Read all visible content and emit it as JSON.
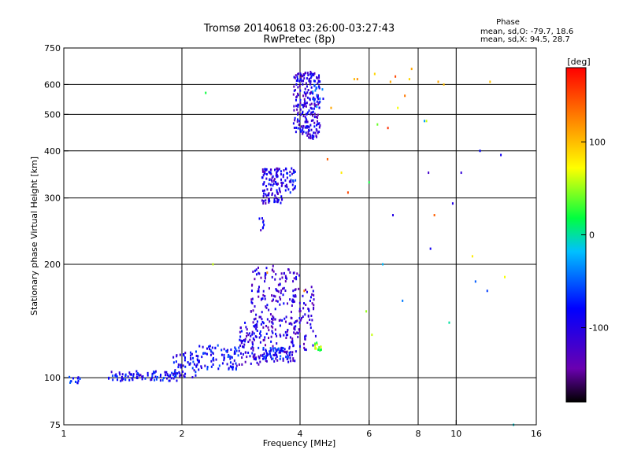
{
  "chart_data": {
    "type": "scatter",
    "title": "Tromsø 20140618 03:26:00-03:27:43",
    "subtitle": "RwPretec (8p)",
    "xlabel": "Frequency [MHz]",
    "ylabel": "Stationary phase Virtual Height [km]",
    "x_scale": "log",
    "y_scale": "log",
    "xlim": [
      1,
      16
    ],
    "ylim": [
      75,
      750
    ],
    "x_ticks": [
      1,
      2,
      4,
      6,
      8,
      10,
      16
    ],
    "x_tick_labels": [
      "1",
      "2",
      "4",
      "6",
      "8",
      "10",
      "16"
    ],
    "y_ticks": [
      75,
      100,
      200,
      300,
      400,
      500,
      600,
      750
    ],
    "y_tick_labels": [
      "75",
      "100",
      "200",
      "300",
      "400",
      "500",
      "600",
      "750"
    ],
    "grid": true,
    "stats": {
      "heading": "Phase",
      "line1": "mean, sd,O: -79.7, 18.6",
      "line2": "mean, sd,X:  94.5, 28.7"
    },
    "colorbar": {
      "label": "[deg]",
      "range": [
        -180,
        180
      ],
      "ticks": [
        100,
        0,
        -100
      ],
      "tick_labels": [
        "100",
        "0",
        "-100"
      ],
      "colormap": "rainbow"
    },
    "series": [
      {
        "type": "scatter_clusters",
        "clusters": [
          {
            "fmin": 1.02,
            "fmax": 1.1,
            "hmin": 96,
            "hmax": 101,
            "n": 12,
            "phase": -70
          },
          {
            "fmin": 1.3,
            "fmax": 1.6,
            "hmin": 98,
            "hmax": 104,
            "n": 45,
            "phase": -90
          },
          {
            "fmin": 1.6,
            "fmax": 1.95,
            "hmin": 98,
            "hmax": 104,
            "n": 40,
            "phase": -85
          },
          {
            "fmin": 1.9,
            "fmax": 2.2,
            "hmin": 100,
            "hmax": 118,
            "n": 60,
            "phase": -90
          },
          {
            "fmin": 2.2,
            "fmax": 2.8,
            "hmin": 105,
            "hmax": 122,
            "n": 80,
            "phase": -85
          },
          {
            "fmin": 2.8,
            "fmax": 3.2,
            "hmin": 108,
            "hmax": 140,
            "n": 70,
            "phase": -100
          },
          {
            "fmin": 3.0,
            "fmax": 3.5,
            "hmin": 110,
            "hmax": 200,
            "n": 130,
            "phase": -110
          },
          {
            "fmin": 3.5,
            "fmax": 4.0,
            "hmin": 110,
            "hmax": 195,
            "n": 110,
            "phase": -110
          },
          {
            "fmin": 3.2,
            "fmax": 3.8,
            "hmin": 112,
            "hmax": 120,
            "n": 60,
            "phase": -75
          },
          {
            "fmin": 3.8,
            "fmax": 4.4,
            "hmin": 118,
            "hmax": 175,
            "n": 60,
            "phase": -110
          },
          {
            "fmin": 4.35,
            "fmax": 4.55,
            "hmin": 118,
            "hmax": 124,
            "n": 15,
            "phase": 45
          },
          {
            "fmin": 3.15,
            "fmax": 3.25,
            "hmin": 240,
            "hmax": 265,
            "n": 8,
            "phase": -100
          },
          {
            "fmin": 3.2,
            "fmax": 3.6,
            "hmin": 290,
            "hmax": 360,
            "n": 110,
            "phase": -105
          },
          {
            "fmin": 3.6,
            "fmax": 3.9,
            "hmin": 310,
            "hmax": 360,
            "n": 40,
            "phase": -90
          },
          {
            "fmin": 3.85,
            "fmax": 4.5,
            "hmin": 430,
            "hmax": 650,
            "n": 220,
            "phase": -105
          },
          {
            "fmin": 4.3,
            "fmax": 4.6,
            "hmin": 520,
            "hmax": 600,
            "n": 20,
            "phase": -60
          }
        ]
      },
      {
        "type": "scatter",
        "name": "scattered",
        "x": [
          2.3,
          2.4,
          3.3,
          4.1,
          4.8,
          4.7,
          5.1,
          5.3,
          5.5,
          6.2,
          6.3,
          6.5,
          6.8,
          7.0,
          7.1,
          7.4,
          7.6,
          7.7,
          8.3,
          8.5,
          8.6,
          8.8,
          9.0,
          9.3,
          9.8,
          11.0,
          11.2,
          11.5,
          12.0,
          13.0,
          13.3,
          14.0,
          6.0,
          6.1,
          6.7,
          5.6,
          5.9,
          7.3,
          8.4,
          10.3,
          12.2,
          6.9,
          9.6
        ],
        "y": [
          570,
          200,
          190,
          170,
          520,
          380,
          350,
          310,
          620,
          640,
          470,
          200,
          610,
          630,
          520,
          560,
          620,
          660,
          480,
          350,
          220,
          270,
          610,
          600,
          290,
          210,
          180,
          400,
          170,
          390,
          185,
          75,
          330,
          130,
          460,
          620,
          150,
          160,
          480,
          350,
          610,
          270,
          140
        ],
        "phase": [
          20,
          60,
          120,
          130,
          110,
          140,
          80,
          150,
          100,
          90,
          40,
          -20,
          110,
          150,
          70,
          130,
          90,
          110,
          -30,
          -120,
          -90,
          140,
          110,
          100,
          -100,
          80,
          -50,
          -80,
          -60,
          -90,
          70,
          -10,
          20,
          60,
          160,
          120,
          50,
          -40,
          60,
          -110,
          100,
          -100,
          0
        ]
      }
    ]
  }
}
